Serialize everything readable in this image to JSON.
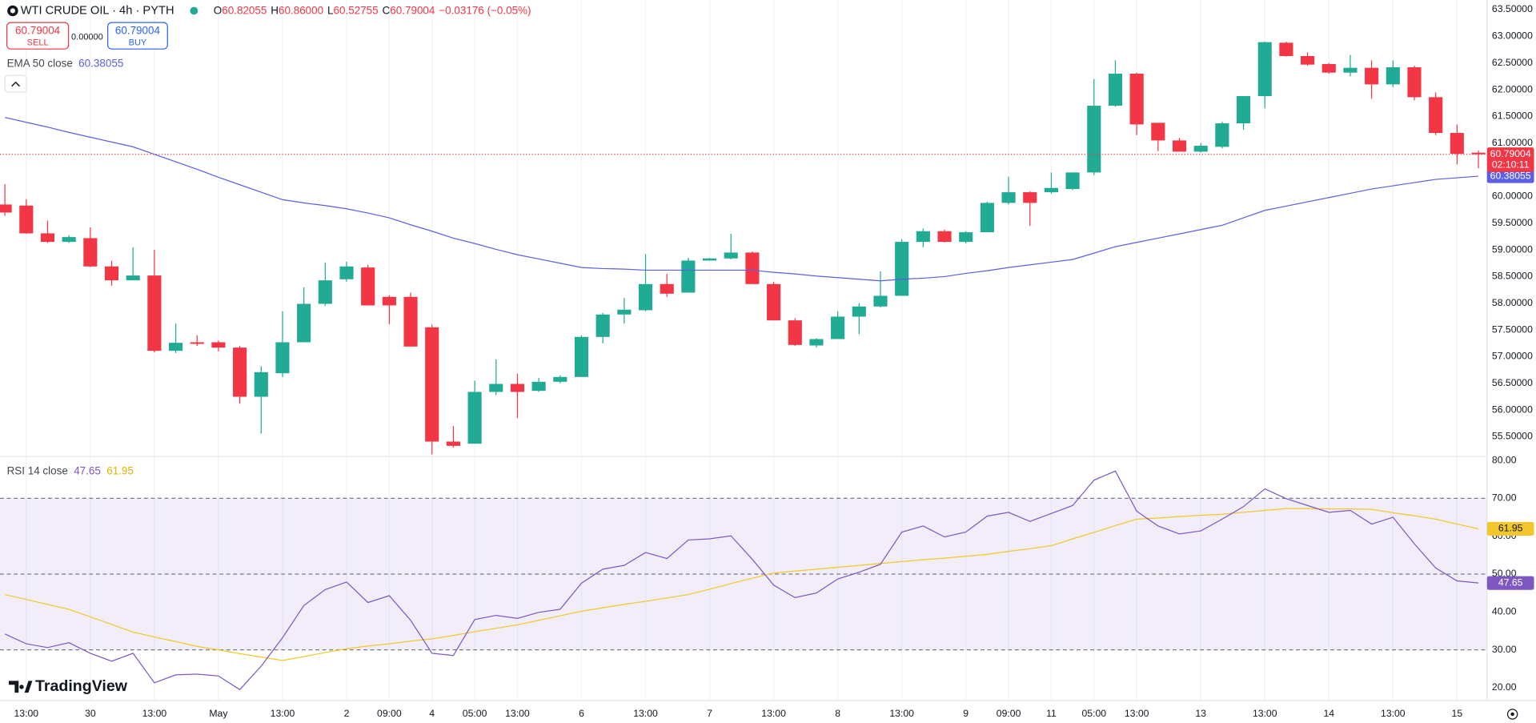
{
  "header": {
    "symbol": "WTI CRUDE OIL · 4h · PYTH",
    "ohlc": [
      {
        "key": "O",
        "value": "60.82055"
      },
      {
        "key": "H",
        "value": "60.86000"
      },
      {
        "key": "L",
        "value": "60.52755"
      },
      {
        "key": "C",
        "value": "60.79004"
      }
    ],
    "change": "−0.03176 (−0.05%)",
    "sell_price": "60.79004",
    "sell": "SELL",
    "spread": "0.00000",
    "buy_price": "60.79004",
    "buy": "BUY"
  },
  "branding": "TradingView",
  "chart_data": [
    {
      "type": "candlestick",
      "categories": [
        null,
        "13:00",
        null,
        null,
        "30",
        null,
        null,
        "13:00",
        null,
        null,
        "May",
        null,
        null,
        "13:00",
        null,
        null,
        "2",
        null,
        "09:00",
        null,
        "4",
        null,
        "05:00",
        null,
        "13:00",
        null,
        null,
        "6",
        null,
        null,
        "13:00",
        null,
        null,
        "7",
        null,
        null,
        "13:00",
        null,
        null,
        "8",
        null,
        null,
        "13:00",
        null,
        null,
        "9",
        null,
        "09:00",
        null,
        "11",
        null,
        "05:00",
        null,
        "13:00",
        null,
        null,
        "13",
        null,
        null,
        "13:00",
        null,
        null,
        "14",
        null,
        null,
        "13:00",
        null,
        null,
        "15",
        null
      ],
      "open": [
        59.85,
        59.83,
        59.31,
        59.15,
        59.22,
        58.69,
        58.43,
        58.52,
        57.11,
        57.27,
        57.27,
        57.17,
        56.25,
        56.69,
        57.27,
        57.99,
        58.45,
        58.67,
        58.12,
        58.12,
        57.55,
        55.41,
        55.37,
        56.34,
        56.49,
        56.36,
        56.53,
        56.62,
        57.37,
        57.79,
        57.87,
        58.36,
        58.2,
        58.8,
        58.84,
        58.95,
        58.36,
        57.68,
        57.21,
        57.33,
        57.75,
        57.94,
        58.14,
        59.15,
        59.35,
        59.15,
        59.33,
        59.88,
        60.08,
        60.08,
        60.14,
        60.45,
        61.7,
        62.3,
        61.38,
        61.05,
        60.84,
        60.93,
        61.37,
        61.88,
        62.88,
        62.63,
        62.48,
        62.32,
        62.41,
        62.1,
        62.42,
        61.86,
        61.19,
        60.82055
      ],
      "high": [
        60.23,
        59.95,
        59.55,
        59.27,
        59.42,
        58.8,
        59.05,
        59.0,
        57.62,
        57.4,
        57.3,
        57.2,
        56.82,
        57.85,
        58.3,
        58.76,
        58.78,
        58.72,
        58.15,
        58.2,
        57.6,
        55.7,
        56.55,
        56.95,
        56.68,
        56.6,
        56.65,
        57.4,
        57.82,
        58.1,
        58.92,
        58.55,
        58.85,
        58.85,
        59.3,
        58.97,
        58.4,
        57.72,
        57.35,
        57.85,
        58.0,
        58.6,
        59.2,
        59.4,
        59.38,
        59.35,
        59.9,
        60.37,
        60.1,
        60.45,
        60.45,
        62.2,
        62.55,
        62.32,
        61.38,
        61.1,
        61.0,
        61.4,
        61.88,
        62.9,
        62.9,
        62.7,
        62.5,
        62.65,
        62.55,
        62.55,
        62.45,
        61.95,
        61.35,
        60.86
      ],
      "low": [
        59.64,
        59.3,
        59.13,
        59.13,
        58.68,
        58.33,
        58.43,
        57.08,
        57.07,
        57.2,
        57.1,
        56.12,
        55.56,
        56.62,
        57.27,
        57.95,
        58.4,
        57.96,
        57.61,
        57.19,
        55.17,
        55.3,
        55.37,
        56.28,
        55.85,
        56.34,
        56.5,
        56.62,
        57.25,
        57.62,
        57.85,
        58.12,
        58.2,
        58.8,
        58.82,
        58.36,
        57.68,
        57.2,
        57.17,
        57.33,
        57.42,
        57.92,
        58.14,
        59.05,
        59.14,
        59.12,
        59.33,
        59.85,
        59.45,
        60.05,
        60.12,
        60.4,
        61.68,
        61.15,
        60.85,
        60.84,
        60.82,
        60.9,
        61.25,
        61.65,
        62.62,
        62.45,
        62.3,
        62.25,
        61.83,
        62.05,
        61.8,
        61.15,
        60.6,
        60.52755
      ],
      "close": [
        59.7,
        59.31,
        59.15,
        59.24,
        58.69,
        58.43,
        58.52,
        57.11,
        57.26,
        57.24,
        57.17,
        56.25,
        56.71,
        57.27,
        57.99,
        58.43,
        58.69,
        57.96,
        57.96,
        57.19,
        55.41,
        55.33,
        56.34,
        56.49,
        56.34,
        56.53,
        56.62,
        57.37,
        57.79,
        57.88,
        58.36,
        58.18,
        58.8,
        58.84,
        58.95,
        58.36,
        57.68,
        57.22,
        57.33,
        57.75,
        57.94,
        58.14,
        59.15,
        59.35,
        59.15,
        59.33,
        59.88,
        60.08,
        59.88,
        60.16,
        60.45,
        61.7,
        62.3,
        61.35,
        61.05,
        60.84,
        60.95,
        61.37,
        61.88,
        62.89,
        62.63,
        62.47,
        62.32,
        62.41,
        62.1,
        62.42,
        61.86,
        61.19,
        60.8,
        60.79004
      ],
      "colors": {
        "up": "#22ab94",
        "down": "#f23645"
      },
      "series": [
        {
          "name": "EMA 50 close",
          "color": "#5b5fe8",
          "value_label": "60.38055",
          "values": [
            61.48,
            61.39,
            61.3,
            61.2,
            61.11,
            61.02,
            60.93,
            60.79,
            60.65,
            60.51,
            60.36,
            60.22,
            60.08,
            59.94,
            59.88,
            59.83,
            59.77,
            59.69,
            59.6,
            59.47,
            59.35,
            59.22,
            59.12,
            59.01,
            58.91,
            58.83,
            58.75,
            58.67,
            58.65,
            58.64,
            58.62,
            58.62,
            58.62,
            58.62,
            58.62,
            58.62,
            58.58,
            58.55,
            58.51,
            58.48,
            58.45,
            58.42,
            58.45,
            58.47,
            58.5,
            58.56,
            58.61,
            58.67,
            58.72,
            58.77,
            58.82,
            58.94,
            59.06,
            59.14,
            59.22,
            59.3,
            59.38,
            59.46,
            59.6,
            59.74,
            59.82,
            59.9,
            59.98,
            60.06,
            60.14,
            60.2,
            60.26,
            60.32,
            60.35,
            60.38
          ]
        }
      ],
      "last_price_label": "60.79004",
      "countdown": "02:10:11",
      "ylim": [
        55.13,
        63.68
      ],
      "yticks": [
        {
          "value": 55.5,
          "label": "55.50000"
        },
        {
          "value": 56,
          "label": "56.00000"
        },
        {
          "value": 56.5,
          "label": "56.50000"
        },
        {
          "value": 57,
          "label": "57.00000"
        },
        {
          "value": 57.5,
          "label": "57.50000"
        },
        {
          "value": 58,
          "label": "58.00000"
        },
        {
          "value": 58.5,
          "label": "58.50000"
        },
        {
          "value": 59,
          "label": "59.00000"
        },
        {
          "value": 59.5,
          "label": "59.50000"
        },
        {
          "value": 60,
          "label": "60.00000"
        },
        {
          "value": 60.5,
          "label": "60.50000"
        },
        {
          "value": 61,
          "label": "61.00000"
        },
        {
          "value": 61.5,
          "label": "61.50000"
        },
        {
          "value": 62,
          "label": "62.00000"
        },
        {
          "value": 62.5,
          "label": "62.50000"
        },
        {
          "value": 63,
          "label": "63.00000"
        },
        {
          "value": 63.5,
          "label": "63.50000"
        }
      ],
      "grid": true
    },
    {
      "type": "line",
      "title": "RSI 14 close",
      "series": [
        {
          "color": "#7e57c2",
          "value_label": "47.65",
          "values": [
            34.2,
            31.6,
            30.6,
            31.9,
            29.1,
            27.0,
            29.1,
            21.3,
            23.4,
            23.6,
            23.1,
            19.5,
            25.7,
            33.2,
            41.7,
            45.9,
            47.9,
            42.5,
            44.3,
            37.8,
            29.1,
            28.5,
            38.0,
            39.1,
            38.3,
            39.9,
            40.7,
            47.6,
            51.3,
            52.3,
            55.7,
            54.1,
            59.0,
            59.3,
            60.1,
            53.9,
            47.1,
            43.8,
            45.0,
            48.7,
            50.5,
            52.6,
            61.1,
            62.7,
            59.8,
            61.1,
            65.3,
            66.3,
            63.9,
            66.0,
            68.1,
            74.8,
            77.2,
            66.6,
            62.7,
            60.6,
            61.4,
            64.5,
            67.8,
            72.5,
            69.9,
            68.1,
            66.3,
            66.8,
            63.2,
            65.0,
            58.0,
            51.6,
            48.2,
            47.65
          ]
        },
        {
          "color": "#f2c72c",
          "value_label": "61.95",
          "values": [
            44.6,
            43.3,
            42.0,
            40.7,
            38.7,
            36.7,
            34.7,
            33.4,
            32.2,
            30.9,
            30.0,
            29.0,
            28.1,
            27.2,
            28.2,
            29.3,
            30.3,
            31.0,
            31.6,
            32.3,
            32.9,
            33.8,
            34.8,
            35.7,
            36.6,
            37.8,
            39.0,
            40.2,
            41.1,
            42.0,
            42.8,
            43.7,
            44.6,
            46.0,
            47.5,
            48.9,
            50.3,
            50.8,
            51.3,
            51.8,
            52.3,
            52.8,
            53.3,
            53.8,
            54.2,
            54.7,
            55.2,
            56.0,
            56.7,
            57.5,
            59.3,
            61.0,
            62.8,
            64.5,
            64.8,
            65.2,
            65.5,
            65.8,
            66.3,
            66.8,
            67.3,
            67.3,
            67.2,
            67.2,
            67.1,
            66.2,
            65.4,
            64.5,
            63.2,
            61.95
          ]
        }
      ],
      "levels": [
        70,
        50,
        30
      ],
      "ylim": [
        16.64,
        81.03
      ],
      "yticks": [
        {
          "value": 20,
          "label": "20.00"
        },
        {
          "value": 30,
          "label": "30.00"
        },
        {
          "value": 40,
          "label": "40.00"
        },
        {
          "value": 50,
          "label": "50.00"
        },
        {
          "value": 60,
          "label": "60.00"
        },
        {
          "value": 70,
          "label": "70.00"
        },
        {
          "value": 80,
          "label": "80.00"
        }
      ],
      "grid": true
    }
  ]
}
